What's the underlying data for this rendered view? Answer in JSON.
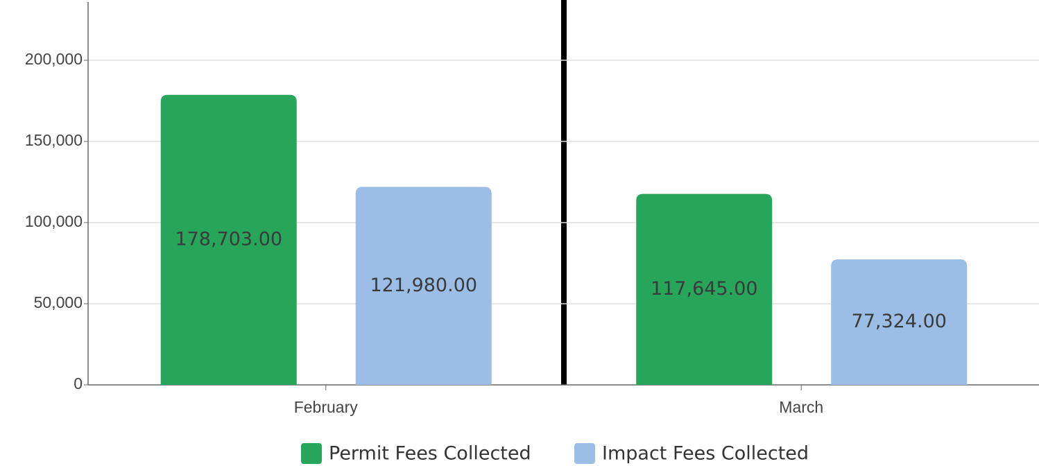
{
  "chart_data": {
    "type": "bar",
    "categories": [
      "February",
      "March"
    ],
    "series": [
      {
        "name": "Permit Fees Collected",
        "color": "#27a55a",
        "values": [
          178703,
          117645
        ],
        "value_labels": [
          "178,703.00",
          "117,645.00"
        ]
      },
      {
        "name": "Impact Fees Collected",
        "color": "#9bbde6",
        "values": [
          121980,
          77324
        ],
        "value_labels": [
          "121,980.00",
          "77,324.00"
        ]
      }
    ],
    "ylim": [
      0,
      235000
    ],
    "yticks": [
      0,
      {
        "value": 50000,
        "label": "50,000"
      },
      {
        "value": 100000,
        "label": "100,000"
      },
      {
        "value": 150000,
        "label": "150,000"
      },
      {
        "value": 200000,
        "label": "200,000"
      }
    ],
    "grid": true,
    "legend": "bottom"
  }
}
